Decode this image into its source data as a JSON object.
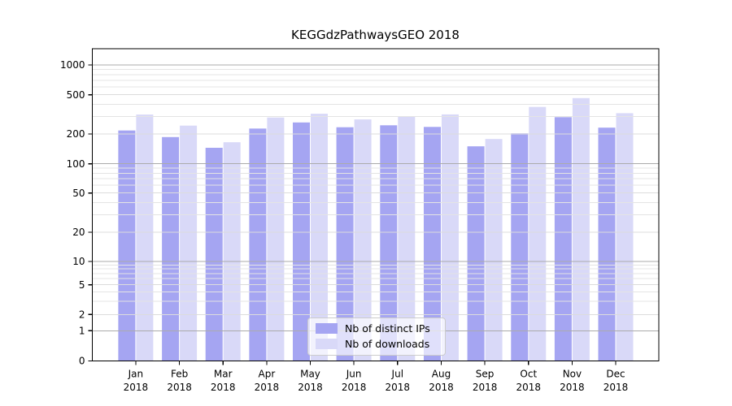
{
  "chart_data": {
    "type": "bar",
    "title": "KEGGdzPathwaysGEO 2018",
    "categories": [
      "Jan 2018",
      "Feb 2018",
      "Mar 2018",
      "Apr 2018",
      "May 2018",
      "Jun 2018",
      "Jul 2018",
      "Aug 2018",
      "Sep 2018",
      "Oct 2018",
      "Nov 2018",
      "Dec 2018"
    ],
    "series": [
      {
        "name": "Nb of distinct IPs",
        "color": "#a5a5f2",
        "values": [
          217,
          186,
          145,
          227,
          262,
          234,
          245,
          236,
          150,
          203,
          296,
          232
        ]
      },
      {
        "name": "Nb of downloads",
        "color": "#d9d9f8",
        "values": [
          315,
          243,
          165,
          294,
          321,
          281,
          302,
          316,
          178,
          376,
          463,
          325
        ]
      }
    ],
    "xlabel": "",
    "ylabel": "",
    "yscale": "symlog",
    "yticks": [
      0,
      1,
      2,
      5,
      10,
      20,
      50,
      100,
      200,
      500,
      1000
    ],
    "ylim": [
      0,
      1500
    ],
    "grid": "horizontal major + log minors",
    "legend_position": "lower center",
    "colors": {
      "major_gridline": "#ababab",
      "minor_gridline": "#e4e4e4",
      "axis": "#000000",
      "background": "#ffffff"
    }
  }
}
